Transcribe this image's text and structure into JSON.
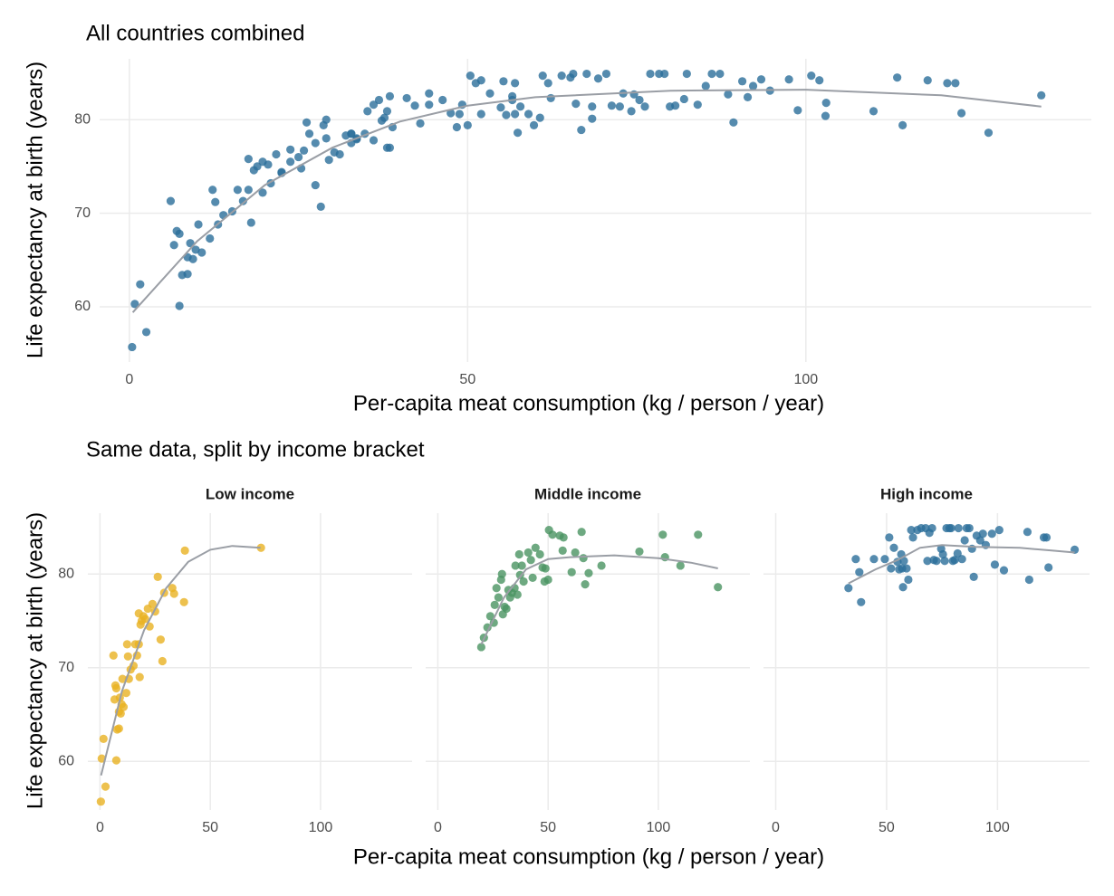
{
  "chart_data": [
    {
      "type": "scatter",
      "title": "All countries combined",
      "xlabel": "Per-capita meat consumption (kg / person / year)",
      "ylabel": "Life expectancy at birth (years)",
      "xlim": [
        -4.4,
        142.2
      ],
      "ylim": [
        54.1,
        86.5
      ],
      "xticks": [
        0,
        50,
        100
      ],
      "yticks": [
        60,
        70,
        80
      ],
      "grid": true,
      "color": "#2b6e9a",
      "x": [
        0.4,
        0.8,
        1.6,
        2.5,
        6.1,
        6.6,
        7.0,
        7.4,
        7.4,
        7.8,
        8.6,
        8.6,
        9.0,
        9.4,
        9.8,
        10.2,
        10.7,
        11.9,
        12.3,
        12.7,
        13.1,
        13.9,
        15.2,
        16.0,
        16.8,
        17.6,
        17.6,
        18.0,
        18.4,
        18.9,
        19.7,
        20.5,
        21.7,
        22.5,
        23.8,
        25.0,
        26.2,
        27.5,
        28.3,
        29.1,
        32.8,
        33.6,
        38.1,
        38.5,
        73.0,
        19.7,
        20.9,
        22.5,
        23.8,
        25.4,
        25.8,
        26.6,
        27.5,
        28.7,
        29.1,
        29.5,
        30.3,
        31.1,
        32.0,
        32.8,
        33.6,
        34.8,
        35.2,
        36.1,
        36.9,
        37.3,
        38.1,
        38.9,
        41.0,
        42.2,
        43.0,
        44.3,
        46.3,
        47.5,
        48.4,
        48.8,
        50.0,
        50.4,
        52.0,
        55.3,
        57.0,
        56.6,
        60.7,
        62.3,
        65.2,
        66.0,
        66.8,
        68.4,
        74.2,
        91.4,
        102.0,
        103.0,
        110.0,
        118.0,
        127.0,
        32.8,
        36.1,
        37.7,
        38.5,
        44.3,
        49.2,
        51.2,
        52.0,
        53.3,
        54.9,
        55.7,
        56.6,
        57.0,
        57.4,
        57.8,
        59.0,
        59.8,
        61.1,
        61.9,
        63.9,
        65.6,
        67.6,
        68.4,
        69.3,
        70.5,
        71.3,
        72.5,
        74.6,
        75.4,
        76.2,
        77.0,
        78.3,
        79.1,
        79.9,
        80.7,
        82.0,
        82.4,
        84.0,
        85.2,
        86.1,
        87.3,
        88.5,
        89.3,
        90.6,
        92.2,
        93.4,
        94.7,
        97.5,
        98.8,
        100.8,
        102.9,
        113.5,
        114.3,
        120.9,
        122.1,
        123.0,
        134.8
      ],
      "y": [
        55.7,
        60.3,
        62.4,
        57.3,
        71.3,
        66.6,
        68.1,
        67.8,
        60.1,
        63.4,
        63.5,
        65.3,
        66.8,
        65.1,
        66.1,
        68.8,
        65.8,
        67.3,
        72.5,
        71.2,
        68.8,
        69.8,
        70.2,
        72.5,
        71.3,
        72.5,
        75.8,
        69.0,
        74.6,
        75.0,
        75.5,
        75.2,
        76.3,
        74.4,
        76.8,
        76.0,
        79.7,
        73.0,
        70.7,
        78.0,
        78.5,
        77.9,
        77.0,
        82.5,
        82.8,
        72.2,
        73.2,
        74.3,
        75.5,
        74.8,
        76.7,
        78.5,
        77.5,
        79.4,
        80.0,
        75.7,
        76.5,
        76.3,
        78.3,
        77.5,
        78.0,
        78.5,
        80.9,
        77.8,
        82.1,
        79.9,
        80.9,
        79.2,
        82.3,
        81.5,
        79.6,
        82.8,
        82.1,
        80.7,
        79.2,
        80.6,
        79.4,
        84.7,
        84.2,
        84.1,
        83.9,
        82.5,
        80.2,
        82.3,
        84.5,
        81.7,
        78.9,
        80.1,
        80.9,
        82.4,
        84.2,
        81.8,
        80.9,
        84.2,
        78.6,
        78.5,
        81.6,
        80.2,
        77.0,
        81.6,
        81.6,
        83.9,
        80.6,
        82.8,
        81.3,
        80.5,
        82.1,
        80.6,
        78.6,
        81.4,
        80.6,
        79.4,
        84.7,
        83.9,
        84.7,
        84.9,
        84.9,
        81.4,
        84.4,
        84.9,
        81.5,
        81.4,
        82.7,
        82.1,
        81.4,
        84.9,
        84.9,
        84.9,
        81.4,
        81.5,
        82.2,
        84.9,
        81.6,
        83.6,
        84.9,
        84.9,
        82.7,
        79.7,
        84.1,
        83.6,
        84.3,
        83.1,
        84.3,
        81.0,
        84.7,
        80.4,
        84.5,
        79.4,
        83.9,
        83.9,
        80.7,
        82.6
      ],
      "trend": {
        "color": "#9a9ea5",
        "x": [
          0.5,
          10,
          20,
          30,
          40,
          50,
          60,
          80,
          100,
          120,
          134.8
        ],
        "y": [
          59.4,
          67,
          73,
          77,
          79.8,
          81.5,
          82.4,
          83.1,
          83.2,
          82.6,
          81.4
        ]
      }
    },
    {
      "type": "facet",
      "title": "Same data, split by income bracket",
      "xlabel": "Per-capita meat consumption (kg / person / year)",
      "ylabel": "Life expectancy at birth (years)",
      "panels": [
        {
          "title": "Low income",
          "color": "#e8b222",
          "xlim": [
            -5.5,
            141.5
          ],
          "ylim": [
            54.8,
            86.5
          ],
          "xticks": [
            0,
            50,
            100
          ],
          "yticks": [
            60,
            70,
            80
          ],
          "x": [
            0.4,
            0.8,
            1.6,
            2.5,
            6.1,
            6.6,
            7.0,
            7.4,
            7.4,
            7.8,
            8.6,
            8.6,
            9.0,
            9.4,
            9.8,
            10.2,
            10.7,
            11.9,
            12.3,
            12.7,
            13.1,
            13.9,
            15.2,
            16.0,
            16.8,
            17.6,
            17.6,
            18.0,
            18.4,
            18.9,
            19.7,
            20.5,
            21.7,
            22.5,
            23.8,
            25.0,
            26.2,
            27.5,
            28.3,
            29.1,
            32.8,
            33.6,
            38.1,
            38.5,
            73.0
          ],
          "y": [
            55.7,
            60.3,
            62.4,
            57.3,
            71.3,
            66.6,
            68.1,
            67.8,
            60.1,
            63.4,
            63.5,
            65.3,
            66.8,
            65.1,
            66.1,
            68.8,
            65.8,
            67.3,
            72.5,
            71.2,
            68.8,
            69.8,
            70.2,
            72.5,
            71.3,
            72.5,
            75.8,
            69.0,
            74.6,
            75.0,
            75.5,
            75.2,
            76.3,
            74.4,
            76.8,
            76.0,
            79.7,
            73.0,
            70.7,
            78.0,
            78.5,
            77.9,
            77.0,
            82.5,
            82.8
          ],
          "trend": {
            "color": "#9a9ea5",
            "x": [
              0.5,
              10,
              20,
              30,
              40,
              50,
              60,
              72.8
            ],
            "y": [
              58.5,
              67.5,
              74,
              78.5,
              81.3,
              82.6,
              83,
              82.8
            ]
          }
        },
        {
          "title": "Middle income",
          "color": "#4a9461",
          "xlim": [
            -5.5,
            141.5
          ],
          "ylim": [
            54.8,
            86.5
          ],
          "xticks": [
            0,
            50,
            100
          ],
          "yticks": [
            60,
            70,
            80
          ],
          "x": [
            19.7,
            20.9,
            22.5,
            23.8,
            25.4,
            25.8,
            26.6,
            27.5,
            28.7,
            29.1,
            29.5,
            30.3,
            31.1,
            32.0,
            32.8,
            33.6,
            34.8,
            35.2,
            36.1,
            36.9,
            37.3,
            38.1,
            38.9,
            41.0,
            42.2,
            43.0,
            44.3,
            46.3,
            47.5,
            48.4,
            48.8,
            50.0,
            50.4,
            52.0,
            55.3,
            57.0,
            56.6,
            60.7,
            62.3,
            65.2,
            66.0,
            66.8,
            68.4,
            74.2,
            91.4,
            102.0,
            103.0,
            110.0,
            118.0,
            127.0
          ],
          "y": [
            72.2,
            73.2,
            74.3,
            75.5,
            74.8,
            76.7,
            78.5,
            77.5,
            79.4,
            80.0,
            75.7,
            76.5,
            76.3,
            78.3,
            77.5,
            78.0,
            78.5,
            80.9,
            77.8,
            82.1,
            79.9,
            80.9,
            79.2,
            82.3,
            81.5,
            79.6,
            82.8,
            82.1,
            80.7,
            79.2,
            80.6,
            79.4,
            84.7,
            84.2,
            84.1,
            83.9,
            82.5,
            80.2,
            82.3,
            84.5,
            81.7,
            78.9,
            80.1,
            80.9,
            82.4,
            84.2,
            81.8,
            80.9,
            84.2,
            78.6
          ],
          "trend": {
            "color": "#9a9ea5",
            "x": [
              19.7,
              30,
              40,
              50,
              60,
              80,
              100,
              115,
              127
            ],
            "y": [
              72.5,
              77.5,
              80.5,
              81.6,
              81.8,
              82,
              81.7,
              81.2,
              80.6
            ]
          }
        },
        {
          "title": "High income",
          "color": "#2b6e9a",
          "xlim": [
            -5.5,
            141.5
          ],
          "ylim": [
            54.8,
            86.5
          ],
          "xticks": [
            0,
            50,
            100
          ],
          "yticks": [
            60,
            70,
            80
          ],
          "x": [
            32.8,
            36.1,
            37.7,
            38.5,
            44.3,
            49.2,
            51.2,
            52.0,
            53.3,
            54.9,
            55.7,
            56.6,
            57.0,
            57.4,
            57.8,
            59.0,
            59.8,
            61.1,
            61.9,
            63.9,
            65.6,
            67.6,
            68.4,
            69.3,
            70.5,
            71.3,
            72.5,
            74.6,
            75.4,
            76.2,
            77.0,
            78.3,
            79.1,
            79.9,
            80.7,
            82.0,
            82.4,
            84.0,
            85.2,
            86.1,
            87.3,
            88.5,
            89.3,
            90.6,
            92.2,
            93.4,
            94.7,
            97.5,
            98.8,
            100.8,
            102.9,
            113.5,
            114.3,
            120.9,
            122.1,
            123.0,
            134.8
          ],
          "y": [
            78.5,
            81.6,
            80.2,
            77.0,
            81.6,
            81.6,
            83.9,
            80.6,
            82.8,
            81.3,
            80.5,
            82.1,
            80.6,
            78.6,
            81.4,
            80.6,
            79.4,
            84.7,
            83.9,
            84.7,
            84.9,
            84.9,
            81.4,
            84.4,
            84.9,
            81.5,
            81.4,
            82.7,
            82.1,
            81.4,
            84.9,
            84.9,
            84.9,
            81.4,
            81.5,
            82.2,
            84.9,
            81.6,
            83.6,
            84.9,
            84.9,
            82.7,
            79.7,
            84.1,
            83.6,
            84.3,
            83.1,
            84.3,
            81.0,
            84.7,
            80.4,
            84.5,
            79.4,
            83.9,
            83.9,
            80.7,
            82.6
          ],
          "trend": {
            "color": "#9a9ea5",
            "x": [
              32.8,
              45,
              55,
              65,
              75,
              90,
              110,
              125,
              134.8
            ],
            "y": [
              79,
              80.5,
              81.5,
              82.8,
              83.1,
              82.9,
              82.8,
              82.5,
              82.3
            ]
          }
        }
      ]
    }
  ]
}
